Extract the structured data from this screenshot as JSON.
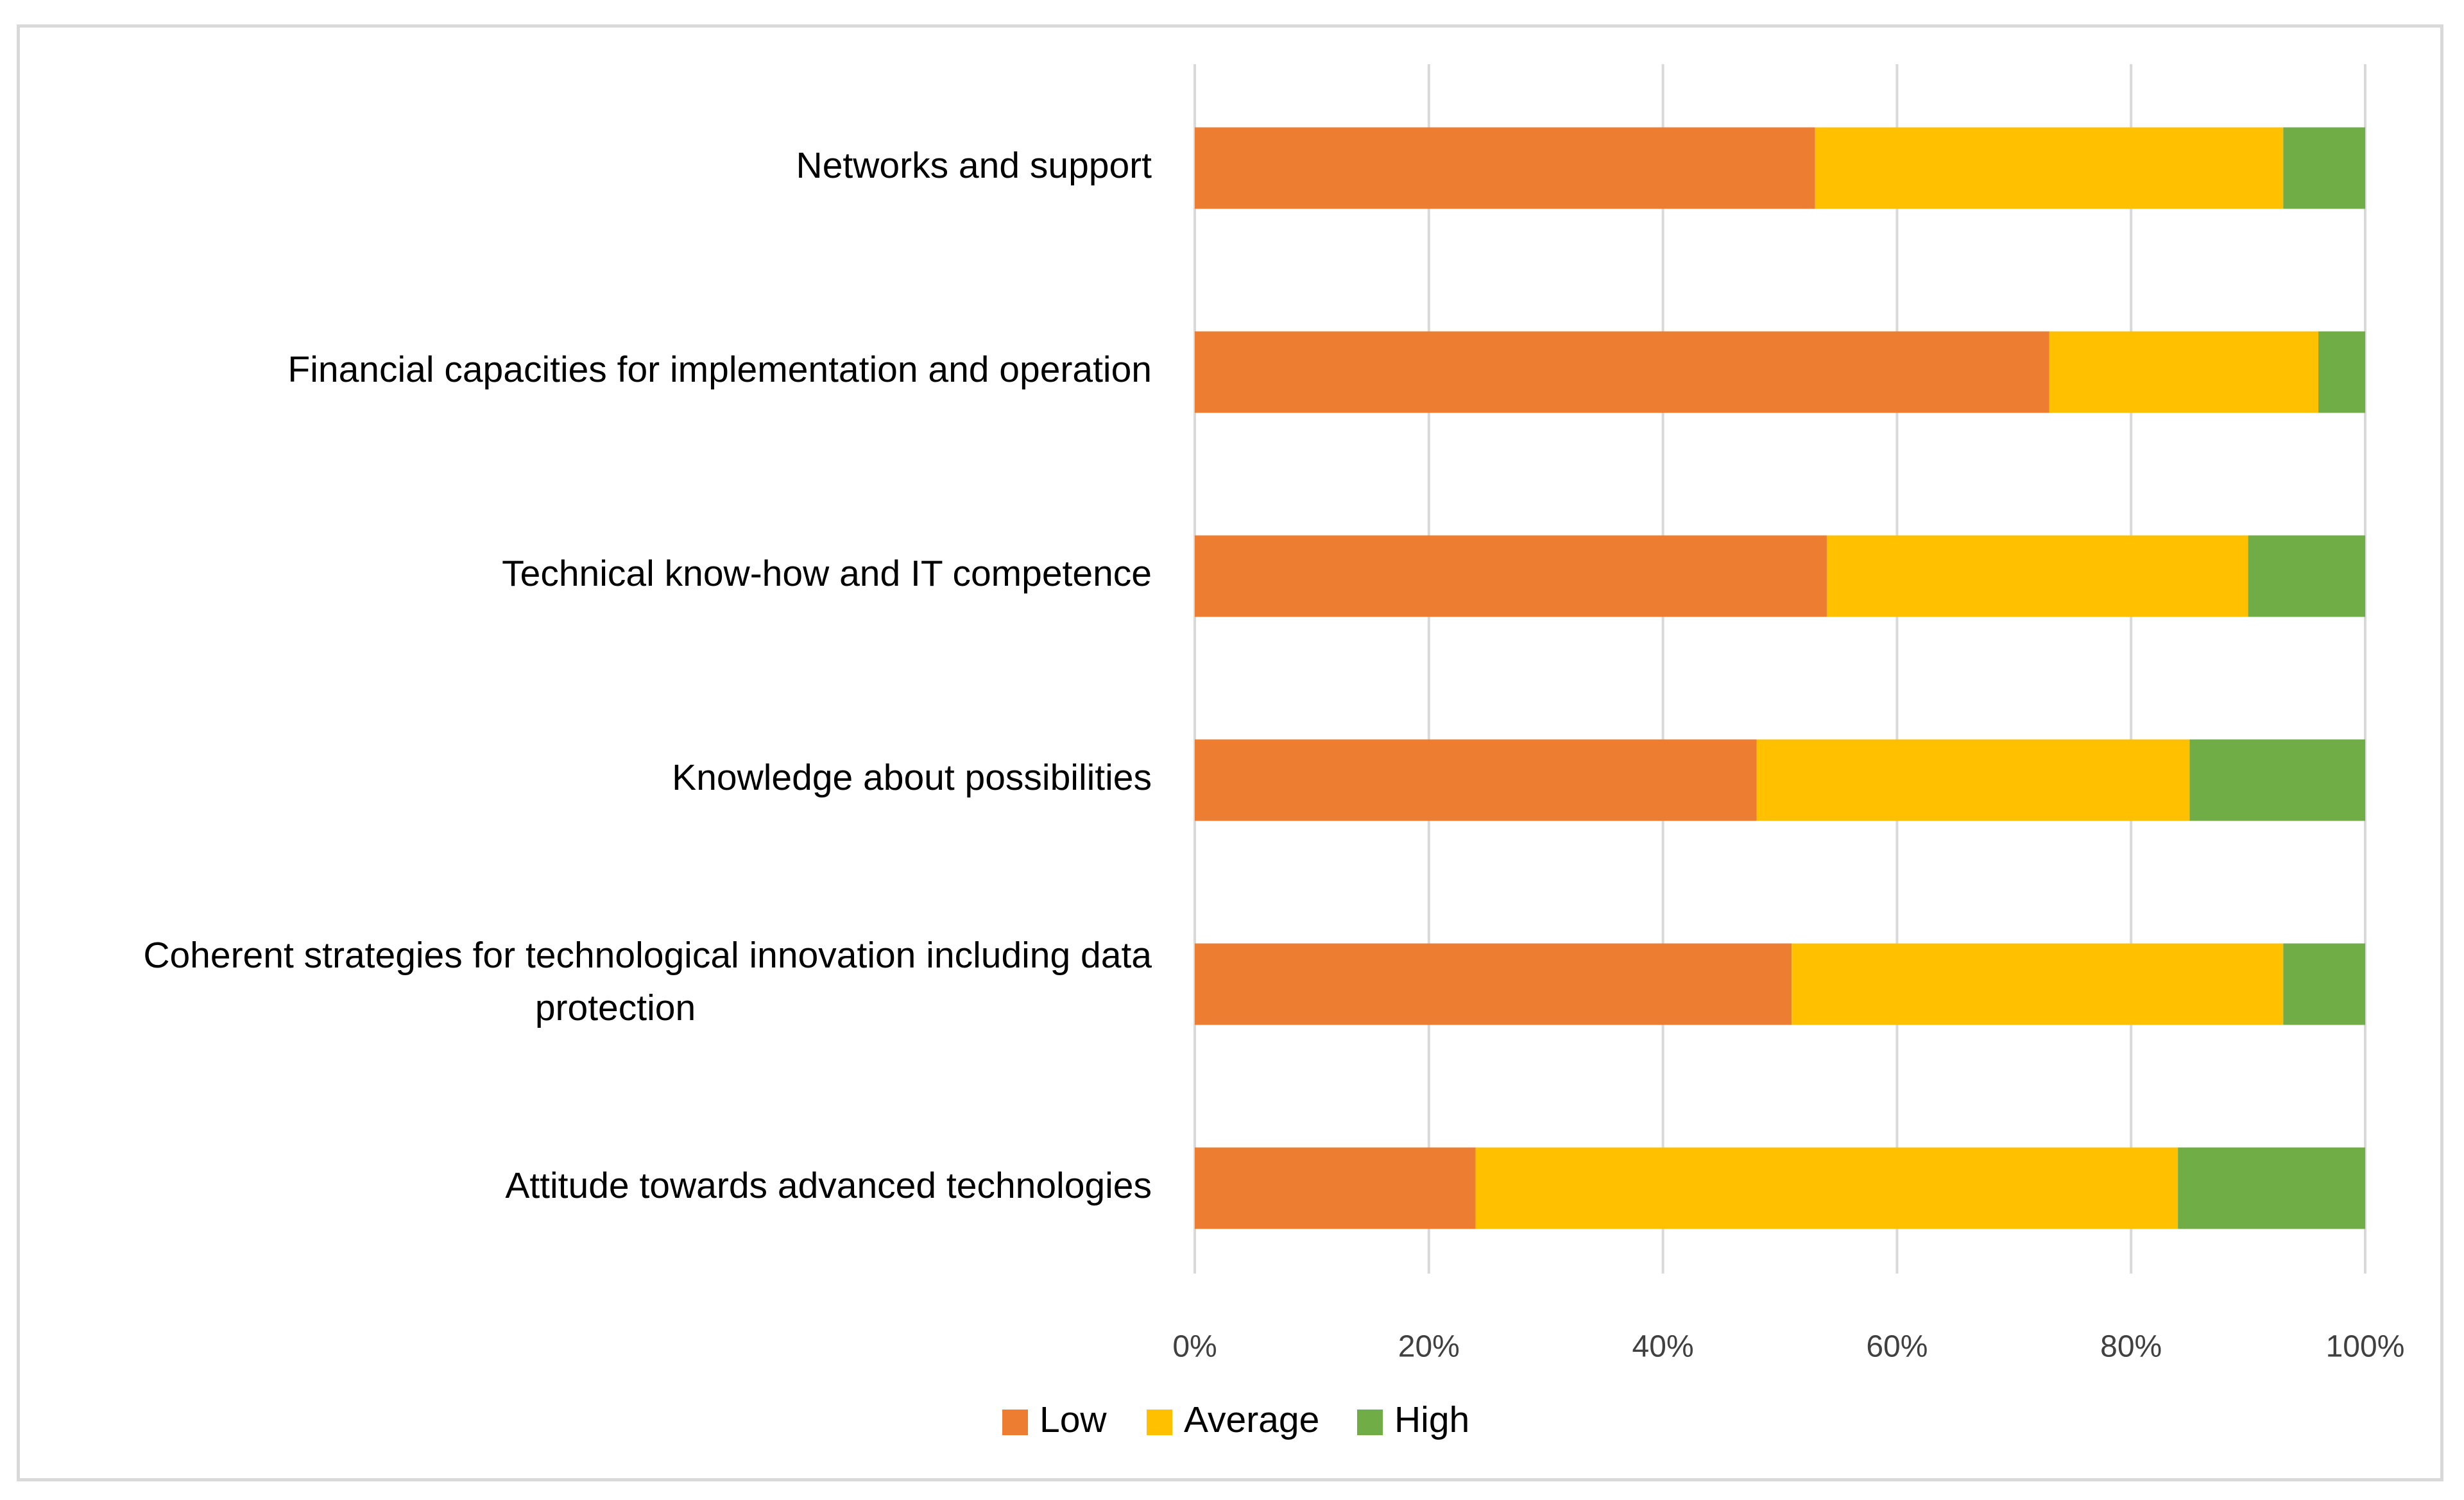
{
  "chart_data": {
    "type": "bar",
    "orientation": "horizontal",
    "stacked": "percent",
    "title": "",
    "xlabel": "",
    "ylabel": "",
    "xlim": [
      0,
      100
    ],
    "grid": true,
    "legend_position": "bottom",
    "categories": [
      "Networks and support",
      "Financial capacities for implementation and operation",
      "Technical know-how and IT competence",
      "Knowledge about possibilities",
      "Coherent strategies for technological innovation including data protection",
      "Attitude towards advanced technologies"
    ],
    "category_lines": [
      [
        "Networks and support"
      ],
      [
        "Financial capacities for implementation and operation"
      ],
      [
        "Technical know-how and IT competence"
      ],
      [
        "Knowledge about possibilities"
      ],
      [
        "Coherent strategies for technological innovation including data",
        "protection"
      ],
      [
        "Attitude towards advanced technologies"
      ]
    ],
    "x_ticks": [
      "0%",
      "20%",
      "40%",
      "60%",
      "80%",
      "100%"
    ],
    "series": [
      {
        "name": "Low",
        "color": "#ED7D31",
        "values": [
          53,
          73,
          54,
          48,
          51,
          24
        ]
      },
      {
        "name": "Average",
        "color": "#FFC000",
        "values": [
          40,
          23,
          36,
          37,
          42,
          60
        ]
      },
      {
        "name": "High",
        "color": "#70AD47",
        "values": [
          7,
          4,
          10,
          15,
          7,
          16
        ]
      }
    ]
  }
}
